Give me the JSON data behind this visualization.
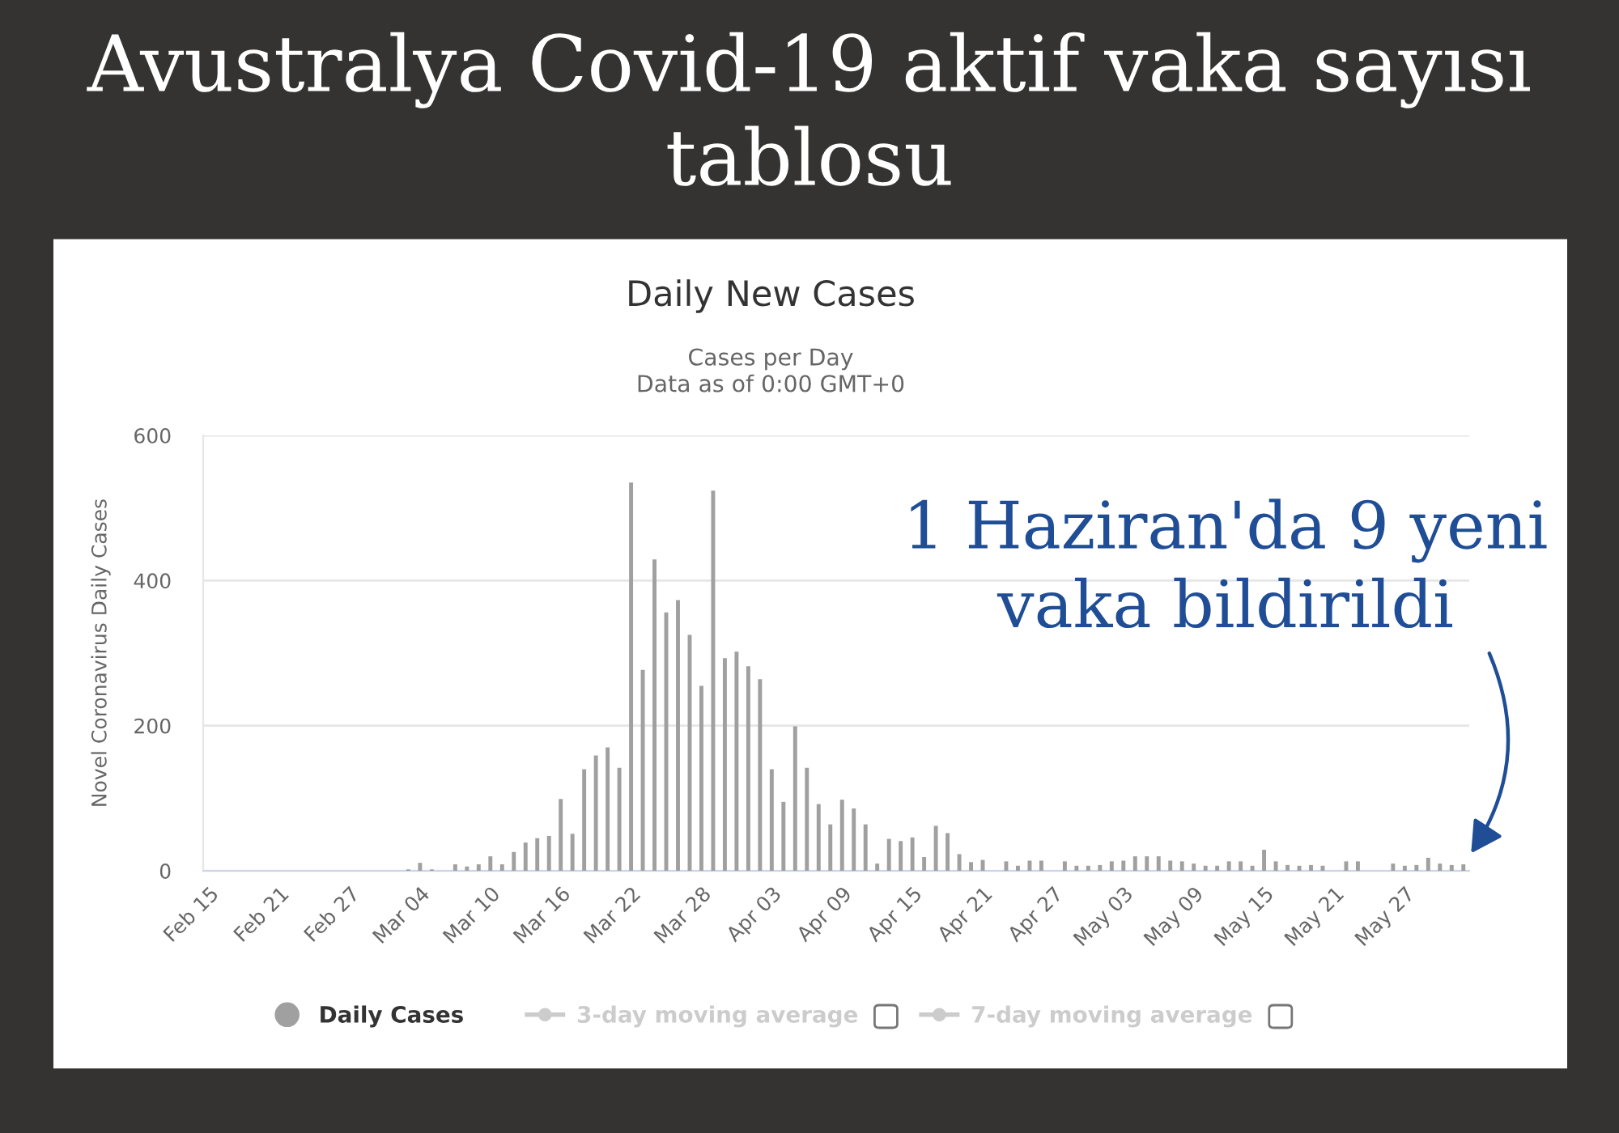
{
  "chart_data": {
    "type": "bar",
    "title": "Daily New Cases",
    "subtitle": "Cases per Day\nData as of 0:00 GMT+0",
    "ylabel": "Novel Coronavirus Daily Cases",
    "annotations": [
      "Avustralya Covid-19 aktif vaka sayısı\ntablosu",
      "1 Haziran'da 9 yeni\nvaka bildirildi"
    ],
    "categories": [
      "Feb 15",
      null,
      null,
      null,
      null,
      null,
      "Feb 21",
      null,
      null,
      null,
      null,
      null,
      "Feb 27",
      null,
      null,
      null,
      null,
      null,
      "Mar 04",
      null,
      null,
      null,
      null,
      null,
      "Mar 10",
      null,
      null,
      null,
      null,
      null,
      "Mar 16",
      null,
      null,
      null,
      null,
      null,
      "Mar 22",
      null,
      null,
      null,
      null,
      null,
      "Mar 28",
      null,
      null,
      null,
      null,
      null,
      "Apr 03",
      null,
      null,
      null,
      null,
      null,
      "Apr 09",
      null,
      null,
      null,
      null,
      null,
      "Apr 15",
      null,
      null,
      null,
      null,
      null,
      "Apr 21",
      null,
      null,
      null,
      null,
      null,
      "Apr 27",
      null,
      null,
      null,
      null,
      null,
      "May 03",
      null,
      null,
      null,
      null,
      null,
      "May 09",
      null,
      null,
      null,
      null,
      null,
      "May 15",
      null,
      null,
      null,
      null,
      null,
      "May 21",
      null,
      null,
      null,
      null,
      null,
      "May 27",
      null,
      null,
      null,
      null,
      null
    ],
    "series": [
      {
        "name": "Daily Cases",
        "color": "#a0a0a0",
        "values": [
          0,
          0,
          0,
          0,
          0,
          0,
          0,
          0,
          0,
          0,
          0,
          0,
          0,
          0,
          0,
          0,
          0,
          2,
          11,
          2,
          0,
          9,
          6,
          9,
          20,
          9,
          26,
          39,
          45,
          48,
          99,
          51,
          140,
          159,
          170,
          142,
          535,
          277,
          429,
          356,
          373,
          325,
          255,
          524,
          293,
          302,
          282,
          264,
          140,
          95,
          199,
          142,
          92,
          64,
          98,
          86,
          64,
          10,
          44,
          41,
          46,
          19,
          62,
          52,
          23,
          12,
          15,
          0,
          13,
          7,
          14,
          14,
          0,
          13,
          7,
          7,
          8,
          13,
          14,
          20,
          20,
          20,
          14,
          13,
          10,
          7,
          7,
          13,
          13,
          7,
          29,
          13,
          8,
          7,
          8,
          7,
          0,
          13,
          13,
          0,
          0,
          10,
          7,
          8,
          18,
          10,
          8,
          9
        ]
      },
      {
        "name": "3-day moving average",
        "type": "line",
        "color": "#cccccc",
        "values": [
          null,
          null,
          null,
          null,
          null,
          null,
          null,
          null,
          null,
          null,
          null,
          null,
          null,
          null,
          null,
          null,
          null,
          null,
          null,
          null,
          null,
          null,
          null,
          null,
          null,
          null,
          null,
          null,
          null,
          null,
          null,
          null,
          null,
          null,
          null,
          null,
          null,
          null,
          null,
          null,
          null,
          null,
          null,
          null,
          null,
          null,
          null,
          null,
          null,
          null,
          null,
          null,
          null,
          null,
          null,
          null,
          null,
          null,
          null,
          null,
          null,
          null,
          null,
          null,
          null,
          null,
          null,
          null,
          null,
          null,
          null,
          null,
          null,
          null,
          null,
          null,
          null,
          null,
          null,
          null,
          null,
          null,
          null,
          null,
          null,
          null,
          null,
          null,
          null,
          null,
          null,
          null,
          null,
          null,
          null,
          null,
          null,
          null,
          null,
          null,
          null,
          null,
          null,
          null,
          null,
          null,
          null,
          null
        ]
      },
      {
        "name": "7-day moving average",
        "type": "line",
        "color": "#cccccc",
        "values": [
          null,
          null,
          null,
          null,
          null,
          null,
          null,
          null,
          null,
          null,
          null,
          null,
          null,
          null,
          null,
          null,
          null,
          null,
          null,
          null,
          null,
          null,
          null,
          null,
          null,
          null,
          null,
          null,
          null,
          null,
          null,
          null,
          null,
          null,
          null,
          null,
          null,
          null,
          null,
          null,
          null,
          null,
          null,
          null,
          null,
          null,
          null,
          null,
          null,
          null,
          null,
          null,
          null,
          null,
          null,
          null,
          null,
          null,
          null,
          null,
          null,
          null,
          null,
          null,
          null,
          null,
          null,
          null,
          null,
          null,
          null,
          null,
          null,
          null,
          null,
          null,
          null,
          null,
          null,
          null,
          null,
          null,
          null,
          null,
          null,
          null,
          null,
          null,
          null,
          null,
          null,
          null,
          null,
          null,
          null,
          null,
          null,
          null,
          null,
          null,
          null,
          null,
          null,
          null,
          null,
          null,
          null,
          null
        ]
      }
    ],
    "ylim": [
      0,
      600
    ],
    "yticks": [
      0,
      200,
      400,
      600
    ],
    "grid": "y",
    "legend": "bottom",
    "marker": "circle"
  }
}
